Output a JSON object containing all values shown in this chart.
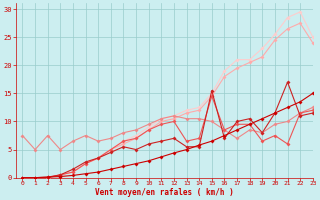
{
  "bg_color": "#cceef0",
  "grid_color": "#99cccc",
  "line_color_dark": "#cc0000",
  "line_color_mid": "#dd5555",
  "line_color_light": "#ee9999",
  "line_color_lighter": "#ffbbcc",
  "xlabel": "Vent moyen/en rafales ( km/h )",
  "xlabel_color": "#cc0000",
  "tick_color": "#cc0000",
  "xlim": [
    -0.5,
    23
  ],
  "ylim": [
    0,
    31
  ],
  "yticks": [
    0,
    5,
    10,
    15,
    20,
    25,
    30
  ],
  "xticks": [
    0,
    1,
    2,
    3,
    4,
    5,
    6,
    7,
    8,
    9,
    10,
    11,
    12,
    13,
    14,
    15,
    16,
    17,
    18,
    19,
    20,
    21,
    22,
    23
  ],
  "x": [
    0,
    1,
    2,
    3,
    4,
    5,
    6,
    7,
    8,
    9,
    10,
    11,
    12,
    13,
    14,
    15,
    16,
    17,
    18,
    19,
    20,
    21,
    22,
    23
  ],
  "lines": [
    {
      "color": "#ffcccc",
      "values": [
        0.0,
        0.0,
        0.0,
        0.5,
        1.0,
        2.5,
        3.5,
        5.0,
        6.5,
        7.5,
        9.0,
        10.5,
        11.0,
        12.0,
        12.5,
        15.0,
        19.0,
        21.0,
        21.0,
        23.0,
        25.5,
        28.5,
        29.5,
        25.0
      ]
    },
    {
      "color": "#ffaaaa",
      "values": [
        0.0,
        0.0,
        0.0,
        0.5,
        1.0,
        2.5,
        3.5,
        5.0,
        6.0,
        7.0,
        8.5,
        10.0,
        10.5,
        11.5,
        12.0,
        14.5,
        18.0,
        19.5,
        20.5,
        21.5,
        24.5,
        26.5,
        27.5,
        24.0
      ]
    },
    {
      "color": "#ee8888",
      "values": [
        7.5,
        5.0,
        7.5,
        5.0,
        6.5,
        7.5,
        6.5,
        7.0,
        8.0,
        8.5,
        9.5,
        10.5,
        11.0,
        10.5,
        10.5,
        10.0,
        8.5,
        7.0,
        8.5,
        8.0,
        9.5,
        10.0,
        11.5,
        12.5
      ]
    },
    {
      "color": "#ee5555",
      "values": [
        0.0,
        0.0,
        0.0,
        0.5,
        1.0,
        2.5,
        3.5,
        5.0,
        6.5,
        7.0,
        8.5,
        9.5,
        10.0,
        6.5,
        7.0,
        14.5,
        8.5,
        9.5,
        9.5,
        6.5,
        7.5,
        6.0,
        11.5,
        12.0
      ]
    },
    {
      "color": "#cc2222",
      "values": [
        0.0,
        0.0,
        0.1,
        0.5,
        1.5,
        2.8,
        3.5,
        4.5,
        5.5,
        5.0,
        6.0,
        6.5,
        7.0,
        5.5,
        5.5,
        15.5,
        7.0,
        10.0,
        10.5,
        8.0,
        11.5,
        17.0,
        11.0,
        11.5
      ]
    },
    {
      "color": "#cc0000",
      "values": [
        0.0,
        0.0,
        0.1,
        0.2,
        0.4,
        0.7,
        1.0,
        1.5,
        2.0,
        2.5,
        3.0,
        3.7,
        4.4,
        5.0,
        5.8,
        6.5,
        7.5,
        8.5,
        9.5,
        10.5,
        11.5,
        12.5,
        13.5,
        15.0
      ]
    }
  ]
}
